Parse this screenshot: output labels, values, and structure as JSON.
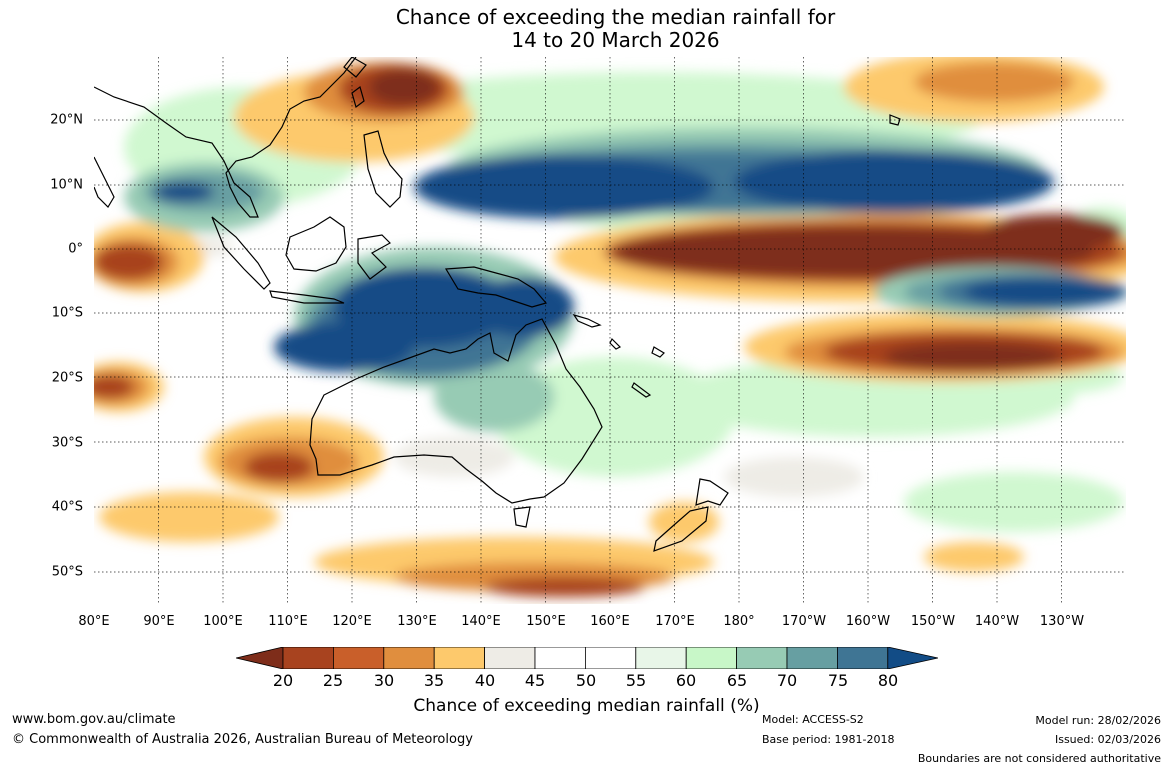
{
  "title": {
    "line1": "Chance of exceeding the median rainfall for",
    "line2": "14 to 20 March 2026"
  },
  "map": {
    "latitude_labels": [
      "20°N",
      "10°N",
      "0°",
      "10°S",
      "20°S",
      "30°S",
      "40°S",
      "50°S"
    ],
    "longitude_labels": [
      "80°E",
      "90°E",
      "100°E",
      "110°E",
      "120°E",
      "130°E",
      "140°E",
      "150°E",
      "160°E",
      "170°E",
      "180°",
      "170°W",
      "160°W",
      "150°W",
      "140°W",
      "130°W"
    ]
  },
  "colorbar": {
    "title": "Chance of exceeding median rainfall (%)",
    "ticks": [
      "20",
      "25",
      "30",
      "35",
      "40",
      "45",
      "50",
      "55",
      "60",
      "65",
      "70",
      "75",
      "80"
    ],
    "colors": [
      "#7e2d1a",
      "#a8431f",
      "#c95f2a",
      "#e08e3e",
      "#fdc96c",
      "#eeece6",
      "#ffffff",
      "#ffffff",
      "#e8f6e8",
      "#c8f7c8",
      "#97cbb4",
      "#679fa2",
      "#3f7594",
      "#124c86"
    ]
  },
  "footer": {
    "website": "www.bom.gov.au/climate",
    "copyright": "© Commonwealth of Australia 2026, Australian Bureau of Meteorology",
    "model": "Model: ACCESS-S2",
    "base_period": "Base period: 1981-2018",
    "model_run": "Model run: 28/02/2026",
    "issued": "Issued: 02/03/2026",
    "boundaries": "Boundaries are not considered authoritative"
  }
}
